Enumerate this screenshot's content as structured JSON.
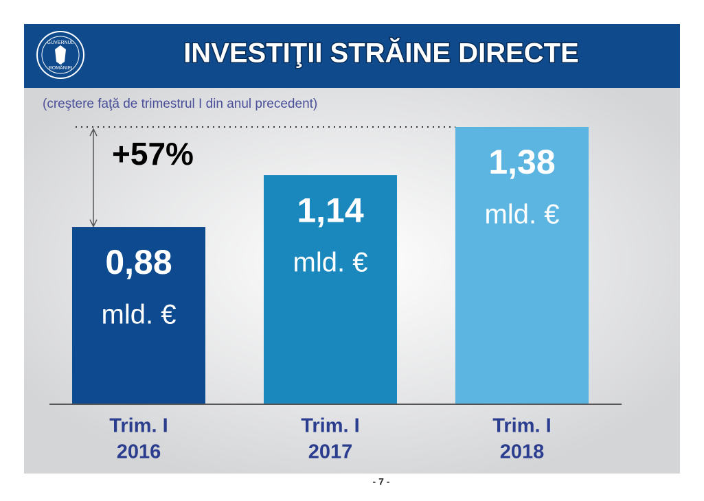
{
  "logo": [
    "GUVERNUL",
    "ROMÂNIEI"
  ],
  "chart_data": {
    "type": "bar",
    "title": "INVESTIŢII STRĂINE DIRECTE",
    "subtitle": "(creştere faţă de trimestrul I din anul precedent)",
    "annotation": "+57%",
    "unit": "mld. €",
    "categories": [
      [
        "Trim. I",
        "2016"
      ],
      [
        "Trim. I",
        "2017"
      ],
      [
        "Trim. I",
        "2018"
      ]
    ],
    "values": [
      0.88,
      1.14,
      1.38
    ],
    "value_labels": [
      "0,88",
      "1,14",
      "1,38"
    ],
    "colors": [
      "#0d4a8f",
      "#1b88bd",
      "#5cb5e1"
    ]
  },
  "page_number": "- 7 -"
}
